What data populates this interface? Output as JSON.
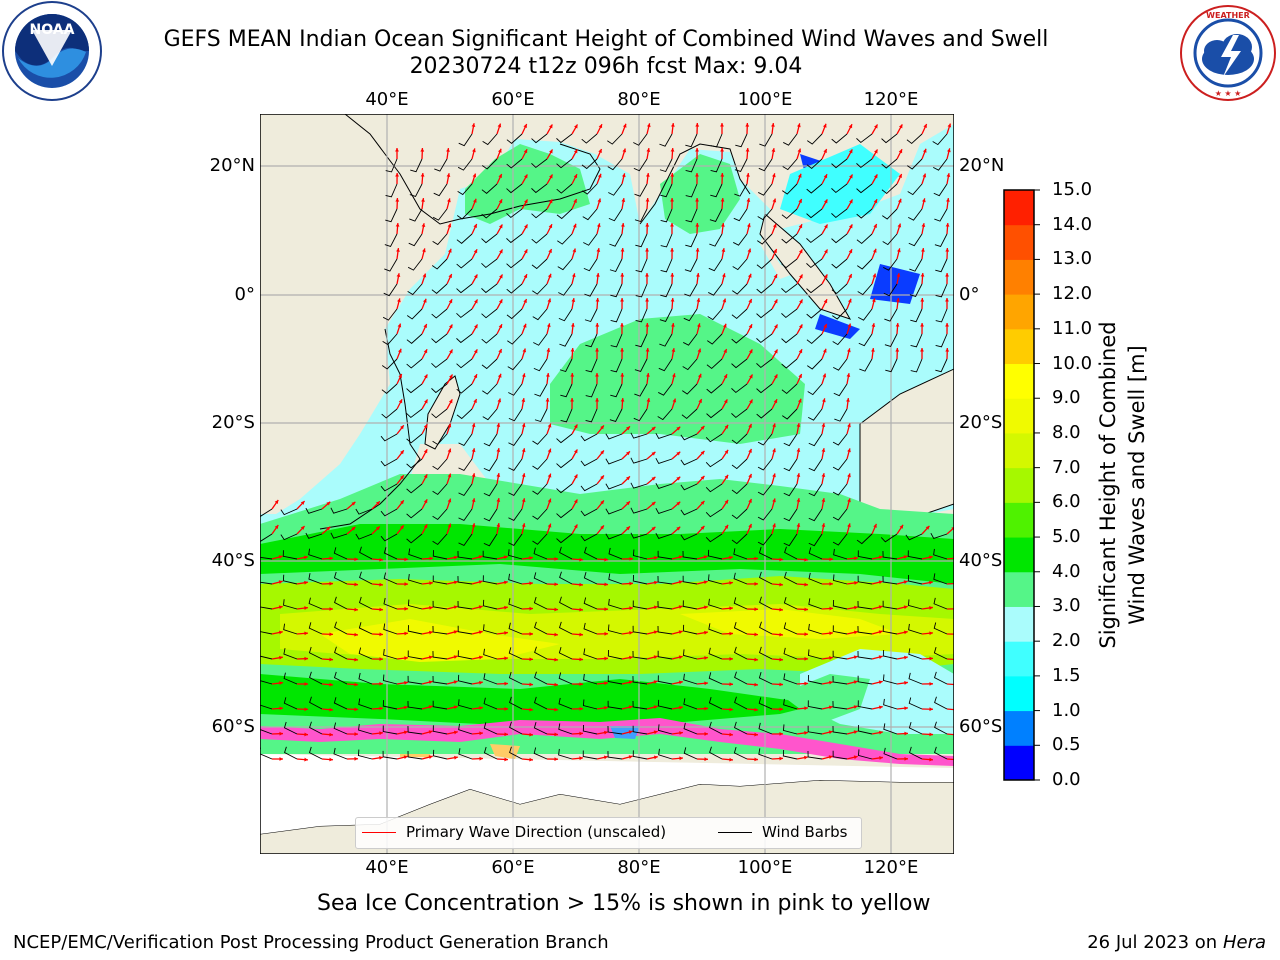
{
  "title": {
    "line1": "GEFS MEAN Indian Ocean Significant Height of Combined Wind Waves and Swell",
    "line2": "20230724 t12z 096h fcst   Max: 9.04"
  },
  "logos": {
    "noaa_text": "NOAA",
    "noaa_ring": "NATIONAL OCEANIC AND ATMOSPHERIC ADMINISTRATION · U.S. DEPARTMENT OF COMMERCE",
    "nws_ring": "NATIONAL WEATHER SERVICE"
  },
  "map": {
    "lon_ticks": [
      "40°E",
      "60°E",
      "80°E",
      "100°E",
      "120°E"
    ],
    "lat_ticks": [
      "20°N",
      "0°",
      "20°S",
      "40°S",
      "60°S"
    ],
    "legend": {
      "wave_label": "Primary Wave Direction (unscaled)",
      "wave_color": "#ff0000",
      "barb_label": "Wind Barbs",
      "barb_color": "#000000"
    },
    "land_color": "#efecdc",
    "ocean_default": "#aafcfc"
  },
  "colorbar": {
    "title_line1": "Significant Height of Combined",
    "title_line2": "Wind Waves and Swell [m]",
    "labels": [
      "0.0",
      "0.5",
      "1.0",
      "1.5",
      "2.0",
      "3.0",
      "4.0",
      "5.0",
      "6.0",
      "7.0",
      "8.0",
      "9.0",
      "10.0",
      "11.0",
      "12.0",
      "13.0",
      "14.0",
      "15.0"
    ],
    "colors": [
      "#0000ff",
      "#0080ff",
      "#00ffff",
      "#40ffff",
      "#aafcfc",
      "#55f588",
      "#00e600",
      "#4ff200",
      "#a6f800",
      "#d4f800",
      "#f0fa00",
      "#ffff00",
      "#ffcc00",
      "#ffa500",
      "#ff8000",
      "#ff5000",
      "#ff2000"
    ]
  },
  "subtitle": "Sea Ice Concentration > 15% is shown in pink to yellow",
  "footer": {
    "left": "NCEP/EMC/Verification Post Processing Product Generation Branch",
    "right_prefix": "26 Jul 2023 on ",
    "right_host": "Hera"
  }
}
